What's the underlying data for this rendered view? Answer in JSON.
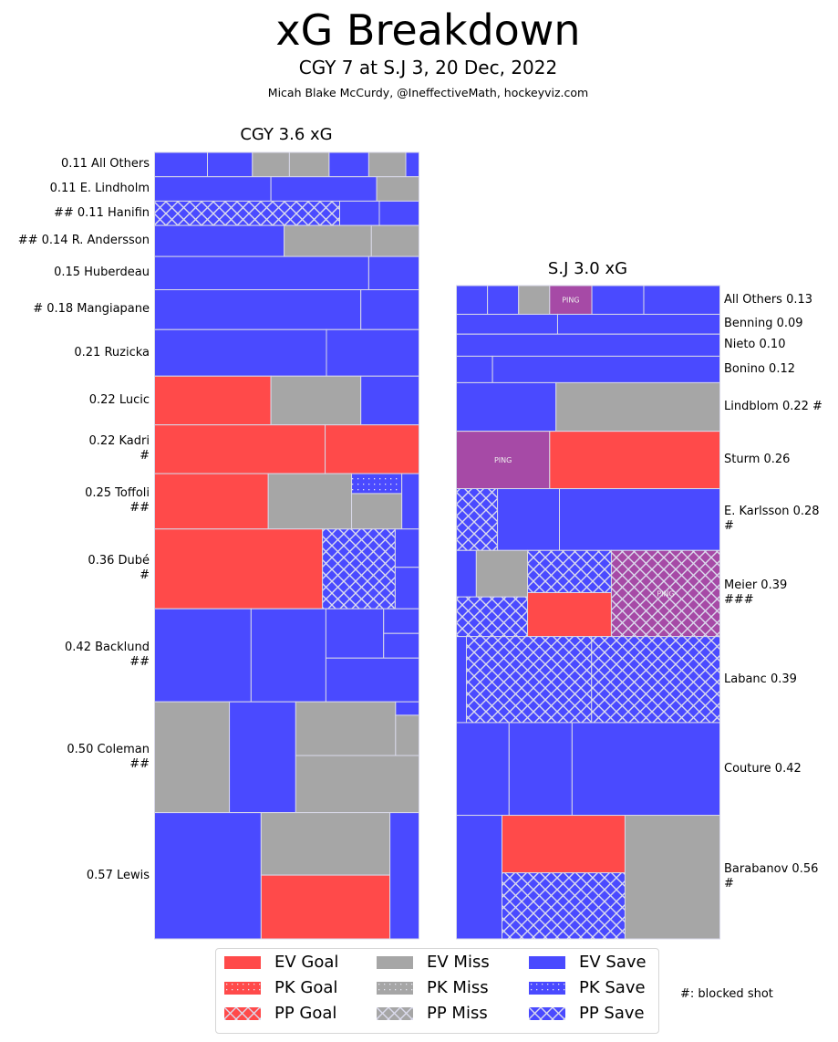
{
  "colors": {
    "goal": "#ff4a4a",
    "miss": "#a6a6a6",
    "save": "#4a4aff",
    "ping": "#a64aa6",
    "edge": "#d8d8e8"
  },
  "header": {
    "title": "xG Breakdown",
    "subtitle": "CGY 7 at S.J 3, 20 Dec, 2022",
    "credit": "Micah Blake McCurdy, @IneffectiveMath, hockeyviz.com"
  },
  "legend": {
    "items": [
      {
        "label": "EV Goal",
        "kind": "goal",
        "pattern": "solid"
      },
      {
        "label": "PK Goal",
        "kind": "goal",
        "pattern": "dots"
      },
      {
        "label": "PP Goal",
        "kind": "goal",
        "pattern": "cross"
      },
      {
        "label": "EV Miss",
        "kind": "miss",
        "pattern": "solid"
      },
      {
        "label": "PK Miss",
        "kind": "miss",
        "pattern": "dots"
      },
      {
        "label": "PP Miss",
        "kind": "miss",
        "pattern": "cross"
      },
      {
        "label": "EV Save",
        "kind": "save",
        "pattern": "solid"
      },
      {
        "label": "PK Save",
        "kind": "save",
        "pattern": "dots"
      },
      {
        "label": "PP Save",
        "kind": "save",
        "pattern": "cross"
      }
    ],
    "blocked_note": "#: blocked shot"
  },
  "chart_data": {
    "type": "treemap",
    "title": "xG Breakdown",
    "subtitle": "CGY 7 at S.J 3, 20 Dec, 2022",
    "panels": [
      {
        "team": "CGY",
        "title": "CGY 3.6 xG",
        "total_xg": 3.6,
        "label_side": "left",
        "players": [
          {
            "name": "All Others",
            "xg": 0.11,
            "label": [
              "0.11 All Others"
            ],
            "tiles": [
              {
                "k": "save",
                "p": "solid",
                "w": 0.2
              },
              {
                "k": "save",
                "p": "solid",
                "w": 0.17
              },
              {
                "k": "miss",
                "p": "solid",
                "w": 0.14
              },
              {
                "k": "miss",
                "p": "solid",
                "w": 0.15
              },
              {
                "k": "save",
                "p": "solid",
                "w": 0.15
              },
              {
                "k": "miss",
                "p": "solid",
                "w": 0.14
              },
              {
                "k": "save",
                "p": "solid",
                "w": 0.05
              }
            ]
          },
          {
            "name": "E. Lindholm",
            "xg": 0.11,
            "label": [
              "0.11 E. Lindholm"
            ],
            "tiles": [
              {
                "k": "save",
                "p": "solid",
                "w": 0.44
              },
              {
                "k": "save",
                "p": "solid",
                "w": 0.4
              },
              {
                "k": "miss",
                "p": "solid",
                "w": 0.16
              }
            ]
          },
          {
            "name": "Hanifin",
            "xg": 0.11,
            "blocked": 2,
            "label": [
              "## 0.11 Hanifin"
            ],
            "tiles": [
              {
                "k": "save",
                "p": "cross",
                "w": 0.7
              },
              {
                "k": "save",
                "p": "solid",
                "w": 0.15
              },
              {
                "k": "save",
                "p": "solid",
                "w": 0.15
              }
            ]
          },
          {
            "name": "R. Andersson",
            "xg": 0.14,
            "blocked": 2,
            "label": [
              "## 0.14 R. Andersson"
            ],
            "tiles": [
              {
                "k": "save",
                "p": "solid",
                "w": 0.49
              },
              {
                "k": "miss",
                "p": "solid",
                "w": 0.33
              },
              {
                "k": "miss",
                "p": "solid",
                "w": 0.18
              }
            ]
          },
          {
            "name": "Huberdeau",
            "xg": 0.15,
            "label": [
              "0.15 Huberdeau"
            ],
            "tiles": [
              {
                "k": "save",
                "p": "solid",
                "w": 0.81
              },
              {
                "k": "save",
                "p": "solid",
                "w": 0.19
              }
            ]
          },
          {
            "name": "Mangiapane",
            "xg": 0.18,
            "blocked": 1,
            "label": [
              "# 0.18 Mangiapane"
            ],
            "tiles": [
              {
                "k": "save",
                "p": "solid",
                "w": 0.78
              },
              {
                "k": "save",
                "p": "solid",
                "w": 0.22
              }
            ]
          },
          {
            "name": "Ruzicka",
            "xg": 0.21,
            "label": [
              "0.21 Ruzicka"
            ],
            "tiles": [
              {
                "k": "save",
                "p": "solid",
                "w": 0.65
              },
              {
                "k": "save",
                "p": "solid",
                "w": 0.35
              }
            ]
          },
          {
            "name": "Lucic",
            "xg": 0.22,
            "label": [
              "0.22 Lucic"
            ],
            "tiles": [
              {
                "k": "goal",
                "p": "solid",
                "w": 0.44
              },
              {
                "k": "miss",
                "p": "solid",
                "w": 0.34
              },
              {
                "k": "save",
                "p": "solid",
                "w": 0.22
              }
            ]
          },
          {
            "name": "Kadri",
            "xg": 0.22,
            "blocked": 1,
            "label": [
              "0.22 Kadri",
              "#"
            ],
            "tiles": [
              {
                "k": "goal",
                "p": "solid",
                "w": 0.645
              },
              {
                "k": "goal",
                "p": "solid",
                "w": 0.355
              }
            ]
          },
          {
            "name": "Toffoli",
            "xg": 0.25,
            "blocked": 2,
            "label": [
              "0.25 Toffoli",
              "##"
            ],
            "tiles": [
              {
                "k": "goal",
                "p": "solid",
                "w": 0.43
              },
              {
                "k": "miss",
                "p": "solid",
                "w": 0.315
              },
              {
                "col": [
                  {
                    "k": "save",
                    "p": "dots",
                    "h": 0.36
                  },
                  {
                    "k": "miss",
                    "p": "solid",
                    "h": 0.64
                  }
                ],
                "w": 0.19
              },
              {
                "k": "save",
                "p": "solid",
                "w": 0.065
              }
            ]
          },
          {
            "name": "Dubé",
            "xg": 0.36,
            "blocked": 1,
            "label": [
              "0.36 Dubé",
              "#"
            ],
            "tiles": [
              {
                "k": "goal",
                "p": "solid",
                "w": 0.635
              },
              {
                "k": "save",
                "p": "cross",
                "w": 0.275
              },
              {
                "col": [
                  {
                    "k": "save",
                    "p": "solid",
                    "h": 0.48
                  },
                  {
                    "k": "save",
                    "p": "solid",
                    "h": 0.52
                  }
                ],
                "w": 0.09
              }
            ]
          },
          {
            "name": "Backlund",
            "xg": 0.42,
            "blocked": 2,
            "label": [
              "0.42 Backlund",
              "##"
            ],
            "tiles": [
              {
                "k": "save",
                "p": "solid",
                "w": 0.365
              },
              {
                "k": "save",
                "p": "solid",
                "w": 0.283
              },
              {
                "col": [
                  {
                    "rowset": [
                      {
                        "k": "save",
                        "p": "solid",
                        "w": 0.62
                      },
                      {
                        "col": [
                          {
                            "k": "save",
                            "p": "solid",
                            "h": 0.5
                          },
                          {
                            "k": "save",
                            "p": "solid",
                            "h": 0.5
                          }
                        ],
                        "w": 0.38
                      }
                    ],
                    "h": 0.53
                  },
                  {
                    "k": "save",
                    "p": "solid",
                    "h": 0.47
                  }
                ],
                "w": 0.352
              }
            ]
          },
          {
            "name": "Coleman",
            "xg": 0.5,
            "blocked": 2,
            "label": [
              "0.50 Coleman",
              "##"
            ],
            "tiles": [
              {
                "k": "miss",
                "p": "solid",
                "w": 0.283
              },
              {
                "k": "miss",
                "p": "solid",
                "w": 0.0,
                "skip": true
              },
              {
                "k": "save",
                "p": "solid",
                "w": 0.251
              },
              {
                "col": [
                  {
                    "rowset": [
                      {
                        "k": "miss",
                        "p": "solid",
                        "w": 0.81
                      },
                      {
                        "col": [
                          {
                            "k": "save",
                            "p": "solid",
                            "h": 0.25
                          },
                          {
                            "k": "miss",
                            "p": "solid",
                            "h": 0.75
                          }
                        ],
                        "w": 0.19
                      }
                    ],
                    "h": 0.485
                  },
                  {
                    "k": "miss",
                    "p": "solid",
                    "h": 0.515
                  }
                ],
                "w": 0.466
              }
            ]
          },
          {
            "name": "Lewis",
            "xg": 0.57,
            "label": [
              "0.57 Lewis"
            ],
            "tiles": [
              {
                "k": "save",
                "p": "solid",
                "w": 0.403
              },
              {
                "col": [
                  {
                    "k": "miss",
                    "p": "solid",
                    "h": 0.495
                  },
                  {
                    "k": "goal",
                    "p": "solid",
                    "h": 0.505
                  }
                ],
                "w": 0.487
              },
              {
                "k": "save",
                "p": "solid",
                "w": 0.11
              }
            ]
          }
        ]
      },
      {
        "team": "S.J",
        "title": "S.J 3.0 xG",
        "total_xg": 3.0,
        "label_side": "right",
        "players": [
          {
            "name": "All Others",
            "xg": 0.13,
            "label": [
              "All Others 0.13"
            ],
            "tiles": [
              {
                "k": "save",
                "p": "solid",
                "w": 0.118
              },
              {
                "k": "save",
                "p": "solid",
                "w": 0.118
              },
              {
                "k": "miss",
                "p": "solid",
                "w": 0.118
              },
              {
                "k": "ping",
                "p": "solid",
                "w": 0.16,
                "text": "PING"
              },
              {
                "k": "save",
                "p": "solid",
                "w": 0.197
              },
              {
                "k": "save",
                "p": "solid",
                "w": 0.289
              }
            ]
          },
          {
            "name": "Benning",
            "xg": 0.09,
            "label": [
              "Benning 0.09"
            ],
            "tiles": [
              {
                "k": "save",
                "p": "solid",
                "w": 0.384
              },
              {
                "k": "save",
                "p": "solid",
                "w": 0.616
              }
            ]
          },
          {
            "name": "Nieto",
            "xg": 0.1,
            "label": [
              "Nieto 0.10"
            ],
            "tiles": [
              {
                "k": "save",
                "p": "solid",
                "w": 1.0
              }
            ]
          },
          {
            "name": "Bonino",
            "xg": 0.12,
            "label": [
              "Bonino 0.12"
            ],
            "tiles": [
              {
                "k": "save",
                "p": "solid",
                "w": 0.137
              },
              {
                "k": "save",
                "p": "solid",
                "w": 0.863
              }
            ]
          },
          {
            "name": "Lindblom",
            "xg": 0.22,
            "blocked": 1,
            "label": [
              "Lindblom 0.22 #"
            ],
            "tiles": [
              {
                "k": "save",
                "p": "solid",
                "w": 0.378
              },
              {
                "k": "miss",
                "p": "solid",
                "w": 0.622
              }
            ]
          },
          {
            "name": "Sturm",
            "xg": 0.26,
            "label": [
              "Sturm 0.26"
            ],
            "tiles": [
              {
                "k": "ping",
                "p": "solid",
                "w": 0.354,
                "text": "PING"
              },
              {
                "k": "goal",
                "p": "solid",
                "w": 0.646
              }
            ]
          },
          {
            "name": "E. Karlsson",
            "xg": 0.28,
            "blocked": 1,
            "label": [
              "E. Karlsson 0.28",
              "#"
            ],
            "tiles": [
              {
                "k": "save",
                "p": "cross",
                "w": 0.156
              },
              {
                "k": "save",
                "p": "solid",
                "w": 0.235
              },
              {
                "k": "save",
                "p": "solid",
                "w": 0.609
              }
            ]
          },
          {
            "name": "Meier",
            "xg": 0.39,
            "blocked": 3,
            "label": [
              "Meier 0.39",
              "###"
            ],
            "tiles": [
              {
                "col": [
                  {
                    "rowset": [
                      {
                        "k": "save",
                        "p": "solid",
                        "w": 0.28
                      },
                      {
                        "k": "miss",
                        "p": "solid",
                        "w": 0.72
                      }
                    ],
                    "h": 0.54
                  },
                  {
                    "k": "save",
                    "p": "cross",
                    "h": 0.46
                  }
                ],
                "w": 0.27
              },
              {
                "col": [
                  {
                    "k": "save",
                    "p": "cross",
                    "h": 0.49
                  },
                  {
                    "k": "goal",
                    "p": "solid",
                    "h": 0.51
                  }
                ],
                "w": 0.318
              },
              {
                "k": "ping",
                "p": "cross",
                "w": 0.412,
                "text": "PING"
              }
            ]
          },
          {
            "name": "Labanc",
            "xg": 0.39,
            "label": [
              "Labanc 0.39"
            ],
            "tiles": [
              {
                "k": "save",
                "p": "solid",
                "w": 0.038
              },
              {
                "k": "save",
                "p": "cross",
                "w": 0.475
              },
              {
                "k": "save",
                "p": "cross",
                "w": 0.487
              }
            ]
          },
          {
            "name": "Couture",
            "xg": 0.42,
            "label": [
              "Couture 0.42"
            ],
            "tiles": [
              {
                "k": "save",
                "p": "solid",
                "w": 0.2
              },
              {
                "k": "save",
                "p": "solid",
                "w": 0.239
              },
              {
                "k": "save",
                "p": "solid",
                "w": 0.561
              }
            ]
          },
          {
            "name": "Barabanov",
            "xg": 0.56,
            "blocked": 1,
            "label": [
              "Barabanov 0.56",
              "#"
            ],
            "tiles": [
              {
                "k": "save",
                "p": "solid",
                "w": 0.173
              },
              {
                "col": [
                  {
                    "k": "goal",
                    "p": "solid",
                    "h": 0.465
                  },
                  {
                    "k": "save",
                    "p": "cross",
                    "h": 0.535
                  }
                ],
                "w": 0.467
              },
              {
                "k": "miss",
                "p": "solid",
                "w": 0.36
              }
            ]
          }
        ]
      }
    ]
  }
}
